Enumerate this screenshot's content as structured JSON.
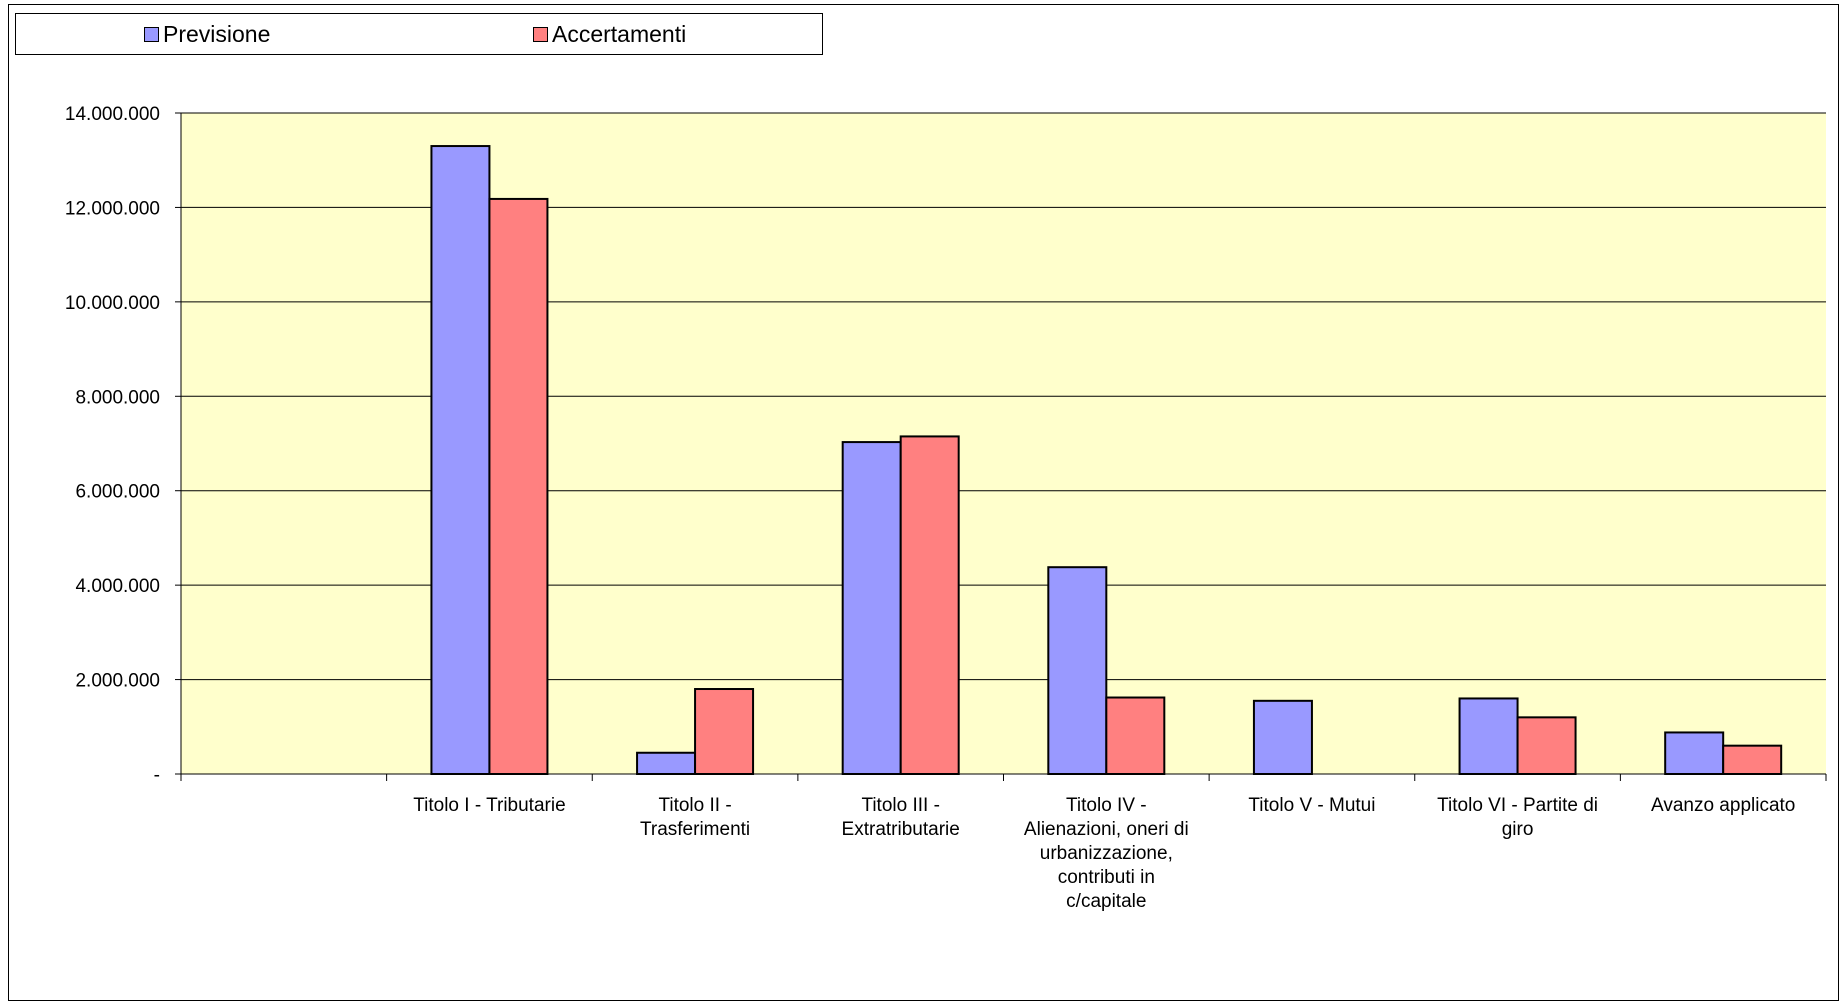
{
  "chart_data": {
    "type": "bar",
    "categories": [
      "",
      "Titolo I - Tributarie",
      "Titolo II - Trasferimenti",
      "Titolo III - Extratributarie",
      "Titolo IV - Alienazioni, oneri di urbanizzazione, contributi in c/capitale",
      "Titolo V - Mutui",
      "Titolo VI - Partite di giro",
      "Avanzo applicato"
    ],
    "category_label_lines": [
      [],
      [
        "Titolo I - Tributarie"
      ],
      [
        "Titolo II -",
        "Trasferimenti"
      ],
      [
        "Titolo III -",
        "Extratributarie"
      ],
      [
        "Titolo IV -",
        "Alienazioni, oneri di",
        "urbanizzazione,",
        "contributi in",
        "c/capitale"
      ],
      [
        "Titolo V - Mutui"
      ],
      [
        "Titolo VI - Partite di",
        "giro"
      ],
      [
        "Avanzo applicato"
      ]
    ],
    "series": [
      {
        "name": "Previsione",
        "color": "#9999ff",
        "values": [
          0,
          13300000,
          450000,
          7030000,
          4380000,
          1550000,
          1600000,
          880000
        ]
      },
      {
        "name": "Accertamenti",
        "color": "#ff8080",
        "values": [
          0,
          12180000,
          1800000,
          7150000,
          1620000,
          0,
          1200000,
          600000
        ]
      }
    ],
    "ylim": [
      0,
      14000000
    ],
    "yticks": [
      0,
      2000000,
      4000000,
      6000000,
      8000000,
      10000000,
      12000000,
      14000000
    ],
    "ytick_labels": [
      "-",
      "2.000.000",
      "4.000.000",
      "6.000.000",
      "8.000.000",
      "10.000.000",
      "12.000.000",
      "14.000.000"
    ],
    "grid": true,
    "plot_background": "#ffffcc",
    "legend_position": "top-left",
    "title": "",
    "xlabel": "",
    "ylabel": ""
  }
}
